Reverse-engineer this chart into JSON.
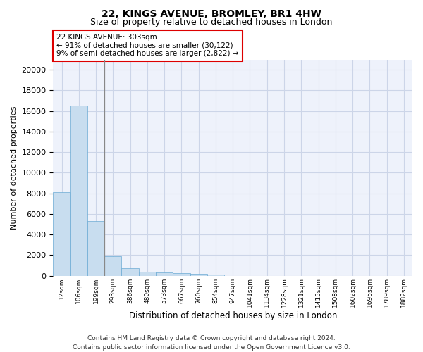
{
  "title_line1": "22, KINGS AVENUE, BROMLEY, BR1 4HW",
  "title_line2": "Size of property relative to detached houses in London",
  "xlabel": "Distribution of detached houses by size in London",
  "ylabel": "Number of detached properties",
  "categories": [
    "12sqm",
    "106sqm",
    "199sqm",
    "293sqm",
    "386sqm",
    "480sqm",
    "573sqm",
    "667sqm",
    "760sqm",
    "854sqm",
    "947sqm",
    "1041sqm",
    "1134sqm",
    "1228sqm",
    "1321sqm",
    "1415sqm",
    "1508sqm",
    "1602sqm",
    "1695sqm",
    "1789sqm",
    "1882sqm"
  ],
  "values": [
    8100,
    16500,
    5300,
    1850,
    700,
    370,
    280,
    220,
    180,
    130,
    0,
    0,
    0,
    0,
    0,
    0,
    0,
    0,
    0,
    0,
    0
  ],
  "bar_color": "#c8ddef",
  "bar_edge_color": "#6aaad4",
  "annotation_text": "22 KINGS AVENUE: 303sqm\n← 91% of detached houses are smaller (30,122)\n9% of semi-detached houses are larger (2,822) →",
  "annotation_box_color": "#ffffff",
  "annotation_box_edge_color": "#dd0000",
  "ylim": [
    0,
    21000
  ],
  "yticks": [
    0,
    2000,
    4000,
    6000,
    8000,
    10000,
    12000,
    14000,
    16000,
    18000,
    20000
  ],
  "grid_color": "#ccd5e8",
  "background_color": "#eef2fb",
  "footer_line1": "Contains HM Land Registry data © Crown copyright and database right 2024.",
  "footer_line2": "Contains public sector information licensed under the Open Government Licence v3.0.",
  "prop_vline_x": 2.5,
  "vline_color": "#888888"
}
